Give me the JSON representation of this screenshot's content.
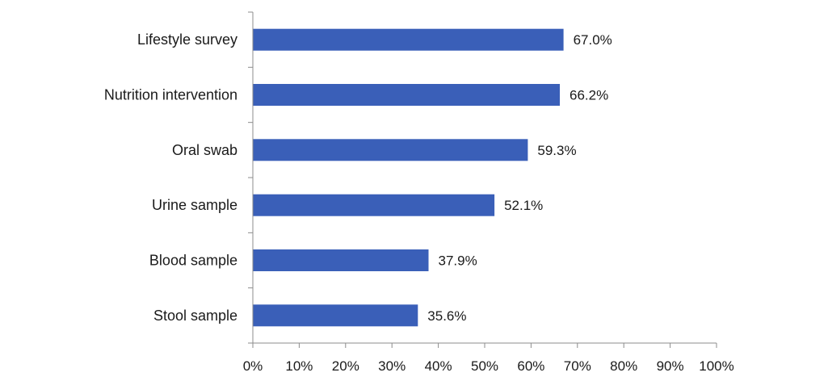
{
  "chart_data": {
    "type": "bar",
    "orientation": "horizontal",
    "categories": [
      "Lifestyle survey",
      "Nutrition intervention",
      "Oral swab",
      "Urine sample",
      "Blood sample",
      "Stool sample"
    ],
    "values": [
      67.0,
      66.2,
      59.3,
      52.1,
      37.9,
      35.6
    ],
    "data_labels": [
      "67.0%",
      "66.2%",
      "59.3%",
      "52.1%",
      "37.9%",
      "35.6%"
    ],
    "xlim": [
      0,
      100
    ],
    "x_ticks": [
      0,
      10,
      20,
      30,
      40,
      50,
      60,
      70,
      80,
      90,
      100
    ],
    "x_tick_labels": [
      "0%",
      "10%",
      "20%",
      "30%",
      "40%",
      "50%",
      "60%",
      "70%",
      "80%",
      "90%",
      "100%"
    ],
    "bar_color": "#3a5fb8",
    "grid": false,
    "legend": "none"
  }
}
